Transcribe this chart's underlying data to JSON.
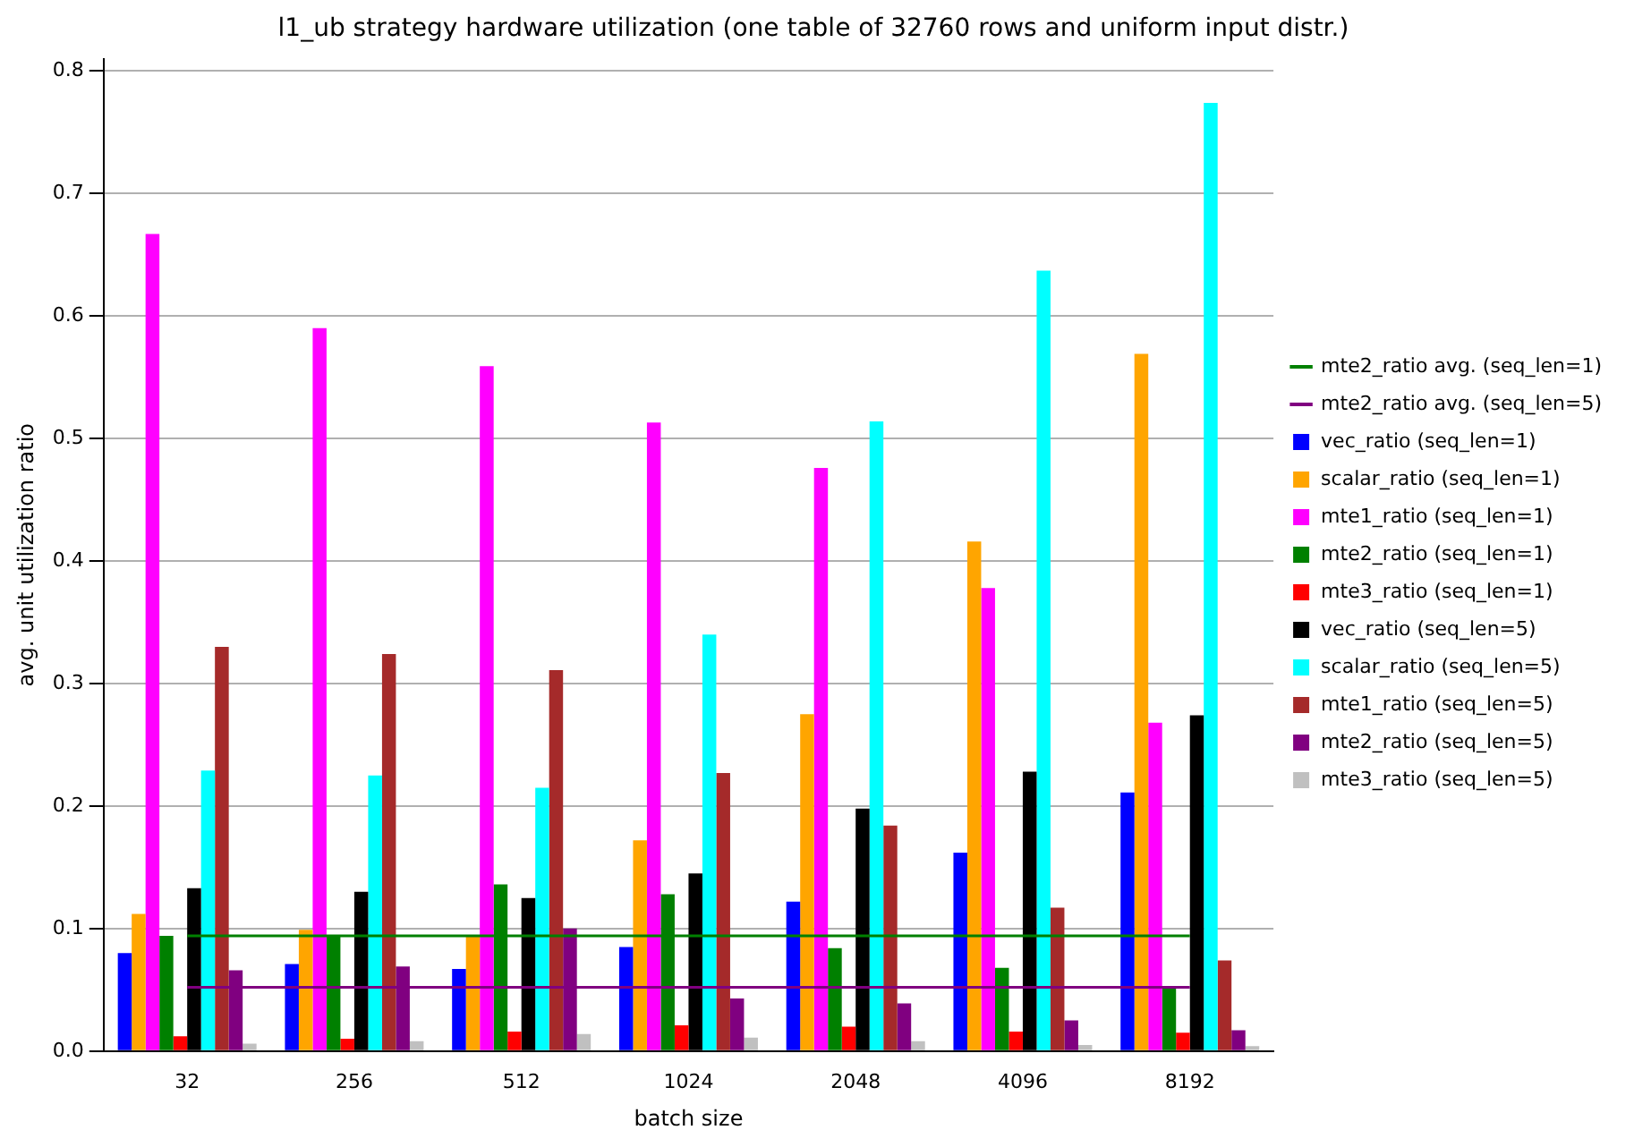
{
  "chart_data": {
    "type": "bar",
    "title": "l1_ub strategy hardware utilization (one table of 32760 rows and uniform input distr.)",
    "xlabel": "batch size",
    "ylabel": "avg. unit utilization ratio",
    "categories": [
      "32",
      "256",
      "512",
      "1024",
      "2048",
      "4096",
      "8192"
    ],
    "series": [
      {
        "type": "line",
        "name": "mte2_ratio avg. (seq_len=1)",
        "color": "#008000",
        "values": [
          0.094,
          0.094,
          0.094,
          0.094,
          0.094,
          0.094,
          0.094
        ]
      },
      {
        "type": "line",
        "name": "mte2_ratio avg. (seq_len=5)",
        "color": "#800080",
        "values": [
          0.052,
          0.052,
          0.052,
          0.052,
          0.052,
          0.052,
          0.052
        ]
      },
      {
        "name": "vec_ratio (seq_len=1)",
        "color": "#0000ff",
        "values": [
          0.08,
          0.071,
          0.067,
          0.085,
          0.122,
          0.162,
          0.211
        ]
      },
      {
        "name": "scalar_ratio (seq_len=1)",
        "color": "#ffa500",
        "values": [
          0.112,
          0.099,
          0.094,
          0.172,
          0.275,
          0.416,
          0.569
        ]
      },
      {
        "name": "mte1_ratio (seq_len=1)",
        "color": "#ff00ff",
        "values": [
          0.667,
          0.59,
          0.559,
          0.513,
          0.476,
          0.378,
          0.268
        ]
      },
      {
        "name": "mte2_ratio (seq_len=1)",
        "color": "#008000",
        "values": [
          0.094,
          0.094,
          0.136,
          0.128,
          0.084,
          0.068,
          0.051
        ]
      },
      {
        "name": "mte3_ratio (seq_len=1)",
        "color": "#ff0000",
        "values": [
          0.012,
          0.01,
          0.016,
          0.021,
          0.02,
          0.016,
          0.015
        ]
      },
      {
        "name": "vec_ratio (seq_len=5)",
        "color": "#000000",
        "values": [
          0.133,
          0.13,
          0.125,
          0.145,
          0.198,
          0.228,
          0.274
        ]
      },
      {
        "name": "scalar_ratio (seq_len=5)",
        "color": "#00ffff",
        "values": [
          0.229,
          0.225,
          0.215,
          0.34,
          0.514,
          0.637,
          0.774
        ]
      },
      {
        "name": "mte1_ratio (seq_len=5)",
        "color": "#a52a2a",
        "values": [
          0.33,
          0.324,
          0.311,
          0.227,
          0.184,
          0.117,
          0.074
        ]
      },
      {
        "name": "mte2_ratio (seq_len=5)",
        "color": "#800080",
        "values": [
          0.066,
          0.069,
          0.1,
          0.043,
          0.039,
          0.025,
          0.017
        ]
      },
      {
        "name": "mte3_ratio (seq_len=5)",
        "color": "#c0c0c0",
        "values": [
          0.006,
          0.008,
          0.014,
          0.011,
          0.008,
          0.005,
          0.004
        ]
      }
    ],
    "marker": "none",
    "ylim": [
      0,
      0.81
    ],
    "yticks": [
      {
        "value": 0,
        "label": "0.0"
      },
      {
        "value": 0.1,
        "label": "0.1"
      },
      {
        "value": 0.2,
        "label": "0.2"
      },
      {
        "value": 0.3,
        "label": "0.3"
      },
      {
        "value": 0.4,
        "label": "0.4"
      },
      {
        "value": 0.5,
        "label": "0.5"
      },
      {
        "value": 0.6,
        "label": "0.6"
      },
      {
        "value": 0.7,
        "label": "0.7"
      },
      {
        "value": 0.8,
        "label": "0.8"
      }
    ],
    "grid": "y",
    "legend": "right"
  }
}
